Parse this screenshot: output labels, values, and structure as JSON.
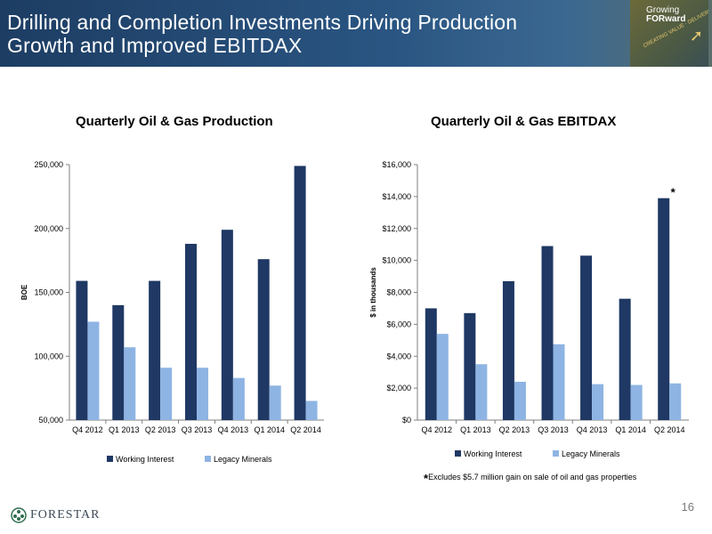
{
  "header": {
    "title_line1": "Drilling and Completion Investments Driving Production",
    "title_line2": "Growth and Improved EBITDAX",
    "logo_line1": "Growing",
    "logo_line2": "FORward",
    "logo_tagline": "CREATING VALUE · DELIVERING RETURNS"
  },
  "colors": {
    "working_interest": "#1f3864",
    "legacy_minerals": "#8eb4e3",
    "header": "#1d3d63"
  },
  "chart_data": [
    {
      "type": "bar",
      "title": "Quarterly Oil & Gas Production",
      "ylabel": "BOE",
      "xlabel": "",
      "categories": [
        "Q4 2012",
        "Q1 2013",
        "Q2 2013",
        "Q3 2013",
        "Q4 2013",
        "Q1 2014",
        "Q2 2014"
      ],
      "series": [
        {
          "name": "Working Interest",
          "values": [
            159000,
            140000,
            159000,
            188000,
            199000,
            176000,
            249000
          ]
        },
        {
          "name": "Legacy Minerals",
          "values": [
            127000,
            107000,
            91000,
            91000,
            83000,
            77000,
            65000
          ]
        }
      ],
      "ylim": [
        50000,
        250000
      ],
      "yticks": [
        50000,
        100000,
        150000,
        200000,
        250000
      ],
      "ytick_labels": [
        "50,000",
        "100,000",
        "150,000",
        "200,000",
        "250,000"
      ],
      "legend_position": "bottom",
      "grid": false
    },
    {
      "type": "bar",
      "title": "Quarterly Oil & Gas EBITDAX",
      "ylabel": "$ in thousands",
      "xlabel": "",
      "categories": [
        "Q4 2012",
        "Q1 2013",
        "Q2 2013",
        "Q3 2013",
        "Q4 2013",
        "Q1 2014",
        "Q2 2014"
      ],
      "series": [
        {
          "name": "Working Interest",
          "values": [
            7000,
            6700,
            8700,
            10900,
            10300,
            7600,
            13900
          ]
        },
        {
          "name": "Legacy Minerals",
          "values": [
            5400,
            3500,
            2400,
            4750,
            2250,
            2200,
            2300
          ]
        }
      ],
      "ylim": [
        0,
        16000
      ],
      "yticks": [
        0,
        2000,
        4000,
        6000,
        8000,
        10000,
        12000,
        14000,
        16000
      ],
      "ytick_labels": [
        "$0",
        "$2,000",
        "$4,000",
        "$6,000",
        "$8,000",
        "$10,000",
        "$12,000",
        "$14,000",
        "$16,000"
      ],
      "legend_position": "bottom",
      "grid": false,
      "annotation": {
        "text": "*",
        "category": "Q2 2014"
      }
    }
  ],
  "footnote": {
    "star": "*",
    "text": "Excludes $5.7 million gain on sale of oil and gas properties"
  },
  "footer": {
    "company": "FORESTAR",
    "page_number": "16"
  }
}
